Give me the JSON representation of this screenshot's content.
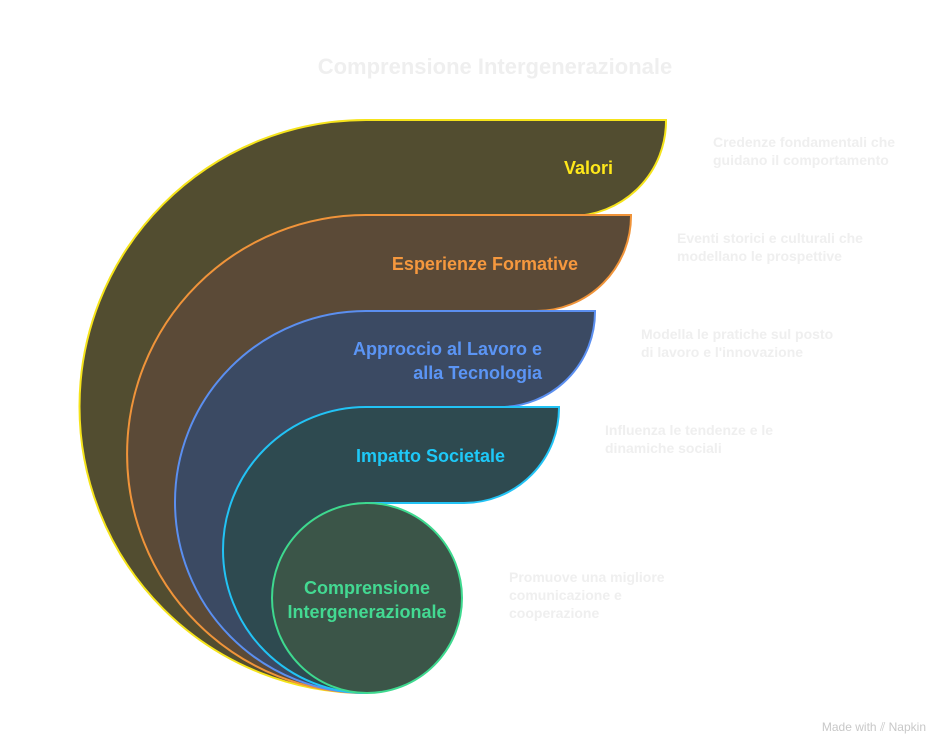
{
  "title": "Comprensione Intergenerazionale",
  "layers": [
    {
      "label": "Valori",
      "description": "Credenze fondamentali che guidano il comportamento",
      "fill": "#524d30",
      "stroke": "#f5e31b",
      "text_color": "#ffe81a"
    },
    {
      "label": "Esperienze Formative",
      "description": "Eventi storici e culturali che modellano le prospettive",
      "fill": "#5b4a37",
      "stroke": "#f0943a",
      "text_color": "#f5983e"
    },
    {
      "label": "Approccio al Lavoro e alla Tecnologia",
      "description": "Modella le pratiche sul posto di lavoro e l'innovazione",
      "fill": "#3b4a63",
      "stroke": "#5b8ff0",
      "text_color": "#5b95f5"
    },
    {
      "label": "Impatto Societale",
      "description": "Influenza le tendenze e le dinamiche sociali",
      "fill": "#2e4a50",
      "stroke": "#22c3f5",
      "text_color": "#1ec8f7"
    },
    {
      "label": "Comprensione Intergenerazionale",
      "description": "Promuove una migliore comunicazione e cooperazione",
      "fill": "#3b5548",
      "stroke": "#3ed98f",
      "text_color": "#43d992"
    }
  ],
  "footer": {
    "text": "Made with",
    "brand": "Napkin",
    "icon": "napkin-logo-icon"
  }
}
